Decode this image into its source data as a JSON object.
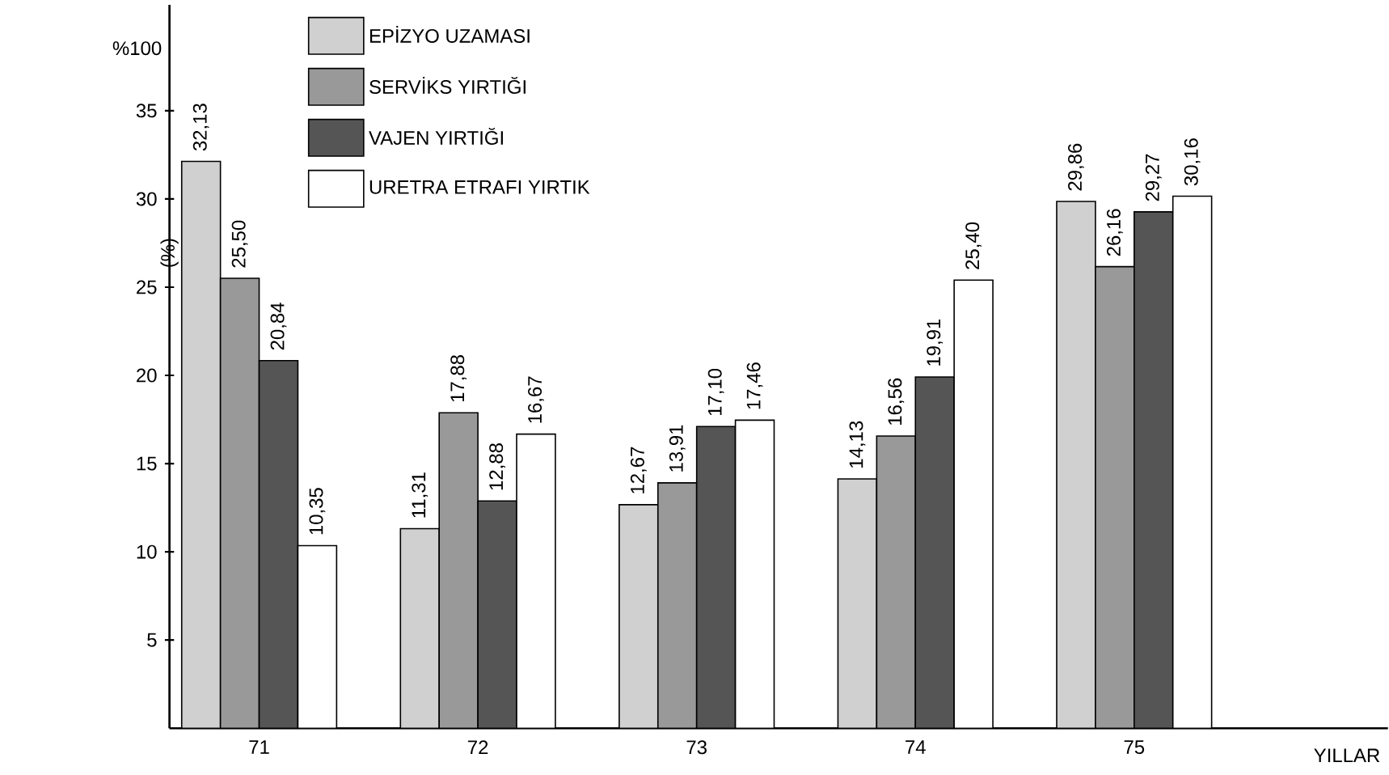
{
  "chart_data": {
    "type": "bar",
    "xlabel": "YILLAR",
    "ylabel": "(%)",
    "categories": [
      "71",
      "72",
      "73",
      "74",
      "75"
    ],
    "ylim": [
      0,
      41
    ],
    "yticks": [
      5,
      10,
      15,
      20,
      25,
      30,
      35
    ],
    "annotations": [
      "%100"
    ],
    "legend": "top",
    "grid": false,
    "series": [
      {
        "name": "EPİZYO UZAMASI",
        "color": "#d0d0d0",
        "values": [
          32.13,
          11.31,
          12.67,
          14.13,
          29.86
        ],
        "value_labels": [
          "32,13",
          "11,31",
          "12,67",
          "14,13",
          "29,86"
        ]
      },
      {
        "name": "SERVİKS YIRTIĞI",
        "color": "#999999",
        "values": [
          25.5,
          17.88,
          13.91,
          16.56,
          26.16
        ],
        "value_labels": [
          "25,50",
          "17,88",
          "13,91",
          "16,56",
          "26,16"
        ]
      },
      {
        "name": "VAJEN YIRTIĞI",
        "color": "#555555",
        "values": [
          20.84,
          12.88,
          17.1,
          19.91,
          29.27
        ],
        "value_labels": [
          "20,84",
          "12,88",
          "17,10",
          "19,91",
          "29,27"
        ]
      },
      {
        "name": "URETRA ETRAFI YIRTIK",
        "color": "#ffffff",
        "values": [
          10.35,
          16.67,
          17.46,
          25.4,
          30.16
        ],
        "value_labels": [
          "10,35",
          "16,67",
          "17,46",
          "25,40",
          "30,16"
        ]
      }
    ]
  }
}
